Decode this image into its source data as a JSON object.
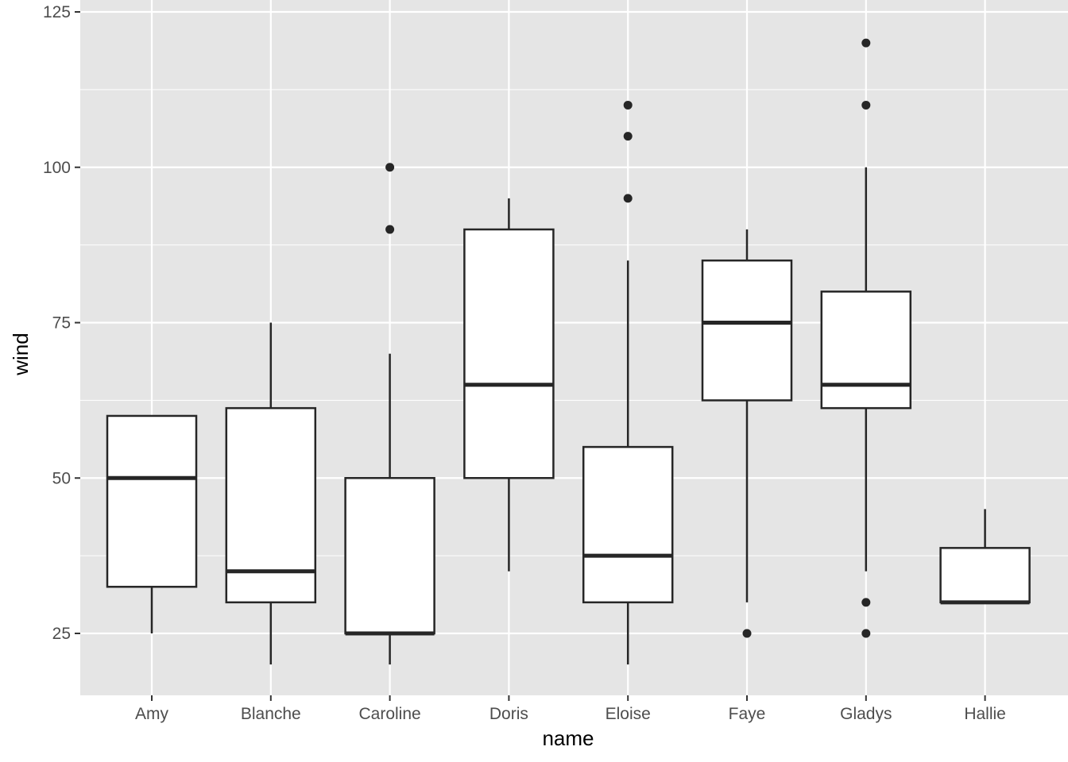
{
  "chart_data": {
    "type": "boxplot",
    "xlabel": "name",
    "ylabel": "wind",
    "ylim": [
      15,
      125
    ],
    "y_ticks": [
      25,
      50,
      75,
      100,
      125
    ],
    "grid": true,
    "colors": {
      "panel": "#e5e5e5",
      "grid": "#ffffff",
      "box_fill": "#ffffff",
      "box_stroke": "#262626",
      "outlier": "#262626"
    },
    "categories": [
      "Amy",
      "Blanche",
      "Caroline",
      "Doris",
      "Eloise",
      "Faye",
      "Gladys",
      "Hallie"
    ],
    "boxes": [
      {
        "name": "Amy",
        "whisker_low": 25,
        "q1": 32.5,
        "median": 50,
        "q3": 60,
        "whisker_high": 60,
        "outliers": []
      },
      {
        "name": "Blanche",
        "whisker_low": 20,
        "q1": 30,
        "median": 35,
        "q3": 61.25,
        "whisker_high": 75,
        "outliers": []
      },
      {
        "name": "Caroline",
        "whisker_low": 20,
        "q1": 25,
        "median": 25,
        "q3": 50,
        "whisker_high": 70,
        "outliers": [
          90,
          100
        ]
      },
      {
        "name": "Doris",
        "whisker_low": 35,
        "q1": 50,
        "median": 65,
        "q3": 90,
        "whisker_high": 95,
        "outliers": []
      },
      {
        "name": "Eloise",
        "whisker_low": 20,
        "q1": 30,
        "median": 37.5,
        "q3": 55,
        "whisker_high": 85,
        "outliers": [
          95,
          105,
          110
        ]
      },
      {
        "name": "Faye",
        "whisker_low": 30,
        "q1": 62.5,
        "median": 75,
        "q3": 85,
        "whisker_high": 90,
        "outliers": [
          25
        ]
      },
      {
        "name": "Gladys",
        "whisker_low": 35,
        "q1": 61.25,
        "median": 65,
        "q3": 80,
        "whisker_high": 100,
        "outliers": [
          25,
          30,
          110,
          120
        ]
      },
      {
        "name": "Hallie",
        "whisker_low": 30,
        "q1": 30,
        "median": 30,
        "q3": 38.75,
        "whisker_high": 45,
        "outliers": []
      }
    ]
  }
}
